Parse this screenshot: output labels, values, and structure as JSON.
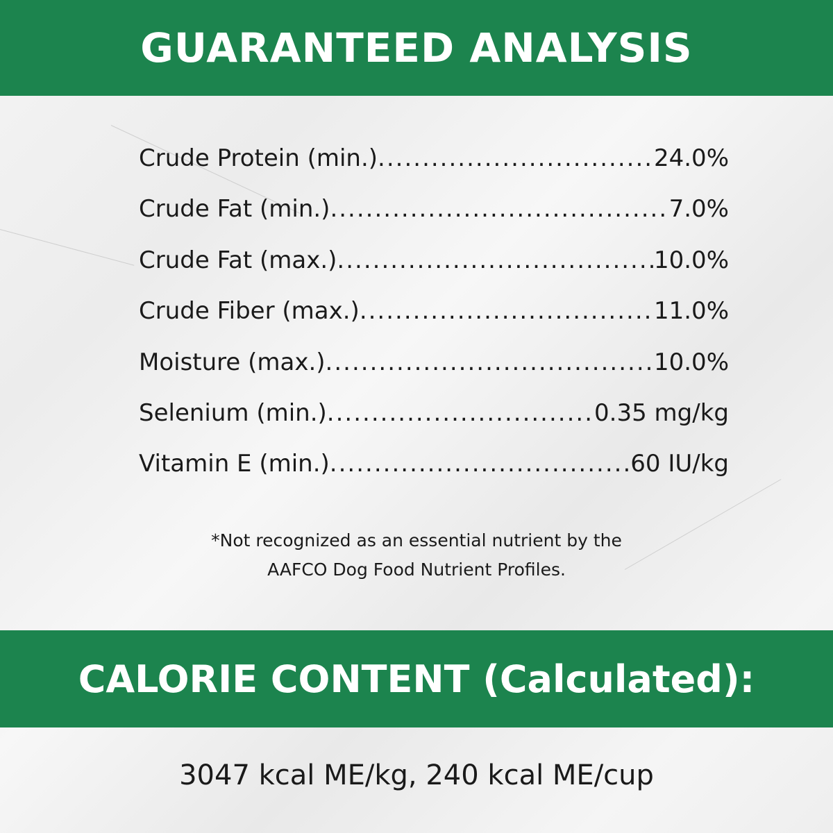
{
  "header": {
    "title": "GUARANTEED ANALYSIS"
  },
  "analysis": [
    {
      "label": "Crude Protein (min.)",
      "value": "24.0%"
    },
    {
      "label": "Crude Fat (min.)",
      "value": "7.0%"
    },
    {
      "label": "Crude Fat (max.)",
      "value": "10.0%"
    },
    {
      "label": "Crude Fiber (max.)",
      "value": "11.0%"
    },
    {
      "label": "Moisture (max.)",
      "value": "10.0%"
    },
    {
      "label": "Selenium (min.)",
      "value": "0.35 mg/kg"
    },
    {
      "label": "Vitamin E (min.)",
      "value": "60 IU/kg"
    }
  ],
  "footnote": {
    "line1": "*Not recognized as an essential nutrient by the",
    "line2": "AAFCO Dog Food Nutrient Profiles."
  },
  "calorie": {
    "title": "CALORIE CONTENT (Calculated):",
    "value": "3047 kcal ME/kg, 240 kcal ME/cup"
  },
  "colors": {
    "brand_green": "#1c844e",
    "background": "marble-white"
  }
}
